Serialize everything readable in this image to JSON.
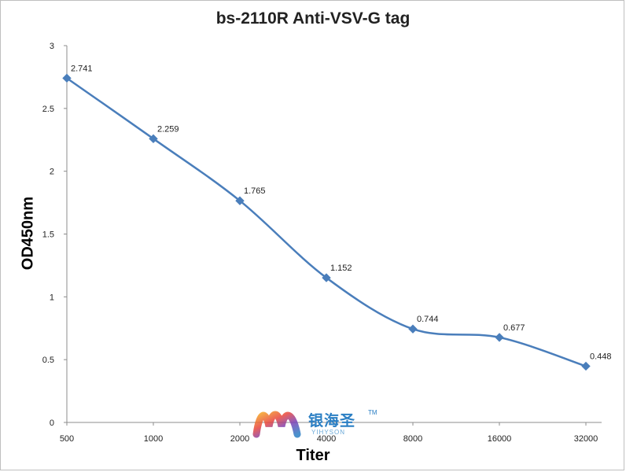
{
  "chart_data": {
    "type": "line",
    "title": "bs-2110R Anti-VSV-G tag",
    "xlabel": "Titer",
    "ylabel": "OD450nm",
    "categories": [
      "500",
      "1000",
      "2000",
      "4000",
      "8000",
      "16000",
      "32000"
    ],
    "series": [
      {
        "values": [
          2.741,
          2.259,
          1.765,
          1.152,
          0.744,
          0.677,
          0.448
        ]
      }
    ],
    "data_labels": [
      "2.741",
      "2.259",
      "1.765",
      "1.152",
      "0.744",
      "0.677",
      "0.448"
    ],
    "ylim": [
      0,
      3
    ],
    "yticks": [
      "0",
      "0.5",
      "1",
      "1.5",
      "2",
      "2.5",
      "3"
    ],
    "grid": false,
    "legend": "none",
    "line_color": "#4a7ebb",
    "marker": "diamond"
  },
  "watermark": {
    "brand_cn": "银海圣",
    "brand_en": "YIHYSON",
    "tm": "TM"
  }
}
